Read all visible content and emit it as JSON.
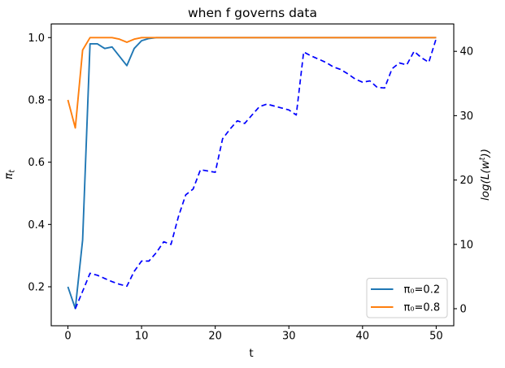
{
  "chart_data": {
    "type": "line",
    "title": "when f governs data",
    "xlabel": "t",
    "ylabel_left": {
      "symbol": "π",
      "subscript": "t"
    },
    "ylabel_right": {
      "prefix": "log(L(w",
      "superscript": "t",
      "suffix": "))"
    },
    "x_ticks": [
      "0",
      "10",
      "20",
      "30",
      "40",
      "50"
    ],
    "y_ticks_left": [
      "0.2",
      "0.4",
      "0.6",
      "0.8",
      "1.0"
    ],
    "y_ticks_right": [
      "0",
      "10",
      "20",
      "30",
      "40"
    ],
    "xlim": [
      -2.5,
      52.5
    ],
    "ylim_left": [
      0.075,
      1.045
    ],
    "ylim_right": [
      -2.65,
      44.25
    ],
    "grid": false,
    "background": "#ffffff",
    "legend": {
      "position": "lower-right",
      "border_color": "#cccccc",
      "entries": [
        {
          "label": "π₀=0.2",
          "color": "#1f77b4",
          "linestyle": "solid"
        },
        {
          "label": "π₀=0.8",
          "color": "#ff7f0e",
          "linestyle": "solid"
        }
      ]
    },
    "series": [
      {
        "name": "pi-t-with-pi0-0.2",
        "axis": "left",
        "color": "#1f77b4",
        "linestyle": "solid",
        "x": [
          0,
          1,
          2,
          3,
          4,
          5,
          6,
          7,
          8,
          9,
          10,
          11,
          12,
          13,
          14,
          15,
          16,
          17,
          18,
          19,
          20,
          21,
          22,
          23,
          24,
          25,
          26,
          27,
          28,
          29,
          30,
          31,
          32,
          33,
          34,
          35,
          36,
          37,
          38,
          39,
          40,
          41,
          42,
          43,
          44,
          45,
          46,
          47,
          48,
          49,
          50
        ],
        "y": [
          0.2,
          0.13,
          0.35,
          0.98,
          0.98,
          0.965,
          0.97,
          0.94,
          0.91,
          0.965,
          0.99,
          0.997,
          1.0,
          1.0,
          1.0,
          1.0,
          1.0,
          1.0,
          1.0,
          1.0,
          1.0,
          1.0,
          1.0,
          1.0,
          1.0,
          1.0,
          1.0,
          1.0,
          1.0,
          1.0,
          1.0,
          1.0,
          1.0,
          1.0,
          1.0,
          1.0,
          1.0,
          1.0,
          1.0,
          1.0,
          1.0,
          1.0,
          1.0,
          1.0,
          1.0,
          1.0,
          1.0,
          1.0,
          1.0,
          1.0,
          1.0
        ]
      },
      {
        "name": "pi-t-with-pi0-0.8",
        "axis": "left",
        "color": "#ff7f0e",
        "linestyle": "solid",
        "x": [
          0,
          1,
          2,
          3,
          4,
          5,
          6,
          7,
          8,
          9,
          10,
          11,
          12,
          13,
          14,
          15,
          16,
          17,
          18,
          19,
          20,
          21,
          22,
          23,
          24,
          25,
          26,
          27,
          28,
          29,
          30,
          31,
          32,
          33,
          34,
          35,
          36,
          37,
          38,
          39,
          40,
          41,
          42,
          43,
          44,
          45,
          46,
          47,
          48,
          49,
          50
        ],
        "y": [
          0.8,
          0.71,
          0.96,
          1.0,
          1.0,
          1.0,
          1.0,
          0.995,
          0.985,
          0.995,
          1.0,
          1.0,
          1.0,
          1.0,
          1.0,
          1.0,
          1.0,
          1.0,
          1.0,
          1.0,
          1.0,
          1.0,
          1.0,
          1.0,
          1.0,
          1.0,
          1.0,
          1.0,
          1.0,
          1.0,
          1.0,
          1.0,
          1.0,
          1.0,
          1.0,
          1.0,
          1.0,
          1.0,
          1.0,
          1.0,
          1.0,
          1.0,
          1.0,
          1.0,
          1.0,
          1.0,
          1.0,
          1.0,
          1.0,
          1.0,
          1.0
        ]
      },
      {
        "name": "log-likelihood",
        "axis": "right",
        "color": "#0000ff",
        "linestyle": "dashed",
        "x": [
          1,
          2,
          3,
          4,
          5,
          6,
          7,
          8,
          9,
          10,
          11,
          12,
          13,
          14,
          15,
          16,
          17,
          18,
          19,
          20,
          21,
          22,
          23,
          24,
          25,
          26,
          27,
          28,
          29,
          30,
          31,
          32,
          33,
          34,
          35,
          36,
          37,
          38,
          39,
          40,
          41,
          42,
          43,
          44,
          45,
          46,
          47,
          48,
          49,
          50
        ],
        "y": [
          0.0,
          2.7,
          5.5,
          5.2,
          4.7,
          4.2,
          3.8,
          3.5,
          5.8,
          7.4,
          7.4,
          8.7,
          10.4,
          10.0,
          14.3,
          17.7,
          18.6,
          21.6,
          21.4,
          21.2,
          26.4,
          27.9,
          29.2,
          28.8,
          30.1,
          31.4,
          31.8,
          31.5,
          31.2,
          30.9,
          30.1,
          39.9,
          39.3,
          38.8,
          38.3,
          37.6,
          37.2,
          36.5,
          35.7,
          35.2,
          35.4,
          34.4,
          34.3,
          37.3,
          38.2,
          37.9,
          40.0,
          39.0,
          38.3,
          42.0
        ]
      }
    ]
  }
}
